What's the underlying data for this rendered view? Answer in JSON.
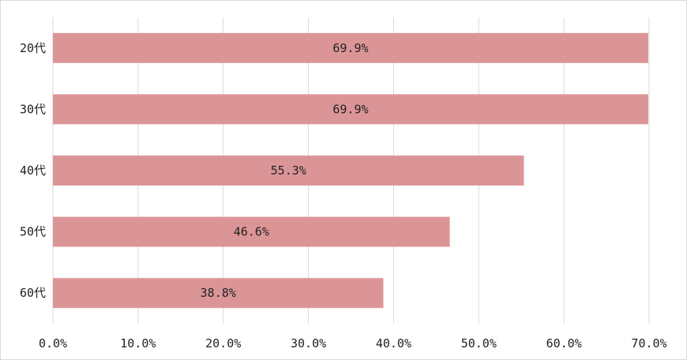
{
  "chart_data": {
    "type": "bar",
    "orientation": "horizontal",
    "categories": [
      "20代",
      "30代",
      "40代",
      "50代",
      "60代"
    ],
    "values": [
      69.9,
      69.9,
      55.3,
      46.6,
      38.8
    ],
    "data_labels": [
      "69.9%",
      "69.9%",
      "55.3%",
      "46.6%",
      "38.8%"
    ],
    "xlim": [
      0,
      70
    ],
    "x_ticks": [
      0,
      10,
      20,
      30,
      40,
      50,
      60,
      70
    ],
    "x_tick_labels": [
      "0.0%",
      "10.0%",
      "20.0%",
      "30.0%",
      "40.0%",
      "50.0%",
      "60.0%",
      "70.0%"
    ],
    "grid": true,
    "bar_color": "#dc9597",
    "title": "",
    "xlabel": "",
    "ylabel": ""
  }
}
